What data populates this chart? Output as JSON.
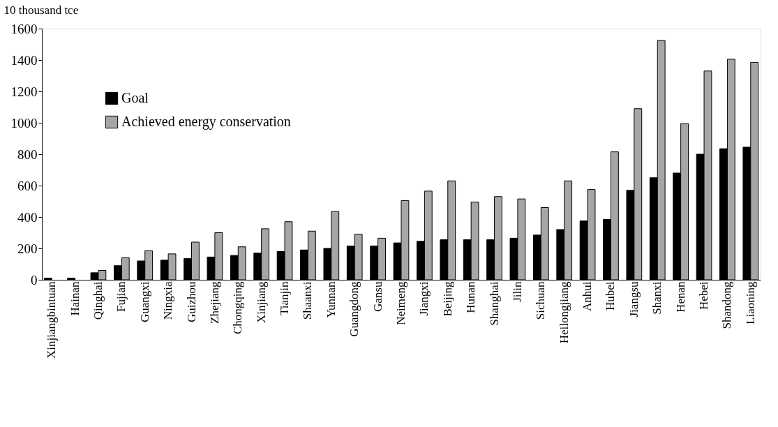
{
  "chart_data": {
    "type": "bar",
    "ylabel": "10 thousand tce",
    "categories": [
      "Xinjiangbintuan",
      "Hainan",
      "Qinghai",
      "Fujian",
      "Guangxi",
      "Ningxia",
      "Guizhou",
      "Zhejiang",
      "Chongqing",
      "Xinjiang",
      "Tianjin",
      "Shaanxi",
      "Yunnan",
      "Guangdong",
      "Gansu",
      "Neimeng",
      "Jiangxi",
      "Beijing",
      "Hunan",
      "Shanghai",
      "Jilin",
      "Sichuan",
      "Heilongjiang",
      "Anhui",
      "Hubei",
      "Jiangsu",
      "Shanxi",
      "Henan",
      "Hebei",
      "Shandong",
      "Liaoning"
    ],
    "series": [
      {
        "name": "Goal",
        "color": "#000000",
        "values": [
          10,
          10,
          45,
          90,
          120,
          125,
          135,
          145,
          155,
          170,
          180,
          190,
          200,
          215,
          215,
          235,
          245,
          255,
          255,
          255,
          265,
          285,
          320,
          375,
          385,
          570,
          650,
          680,
          800,
          835,
          845
        ]
      },
      {
        "name": "Achieved energy conservation",
        "color": "#a6a6a6",
        "values": [
          null,
          null,
          60,
          140,
          185,
          165,
          240,
          300,
          210,
          325,
          370,
          310,
          435,
          290,
          265,
          505,
          565,
          630,
          495,
          530,
          515,
          460,
          630,
          575,
          815,
          1090,
          1525,
          995,
          1330,
          1405,
          1385
        ]
      }
    ],
    "ylim": [
      0,
      1600
    ],
    "yticks": [
      0,
      200,
      400,
      600,
      800,
      1000,
      1200,
      1400,
      1600
    ],
    "grid": false,
    "legend": "top left"
  }
}
